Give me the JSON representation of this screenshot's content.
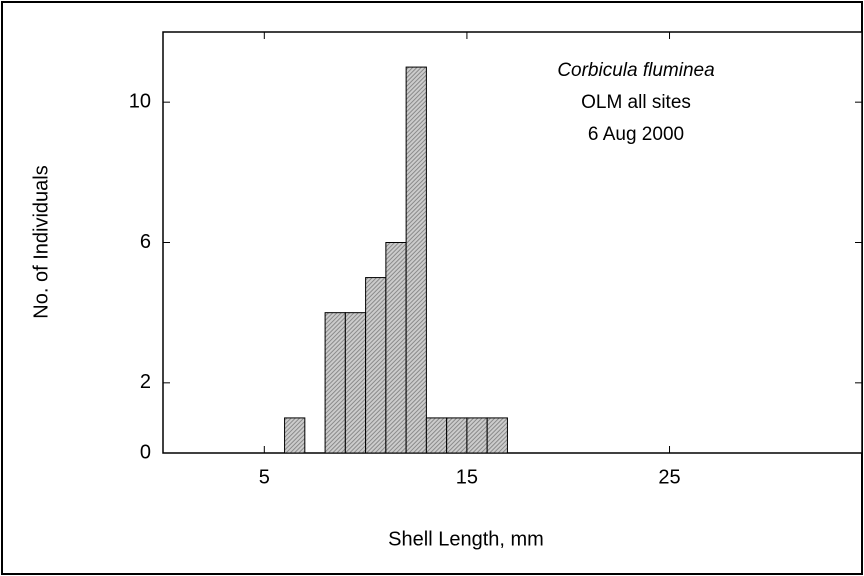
{
  "chart_data": {
    "type": "histogram",
    "xlabel": "Shell Length, mm",
    "ylabel": "No. of Individuals",
    "annotations": [
      "Corbicula fluminea",
      "OLM all sites",
      "6 Aug 2000"
    ],
    "bins": [
      0,
      1,
      2,
      3,
      4,
      5,
      6,
      7,
      8,
      9,
      10,
      11,
      12,
      13,
      14,
      15,
      16,
      17
    ],
    "counts": [
      0,
      0,
      0,
      0,
      0,
      0,
      1,
      0,
      4,
      4,
      5,
      6,
      11,
      1,
      1,
      1,
      1
    ],
    "color": "#8a8a8a",
    "xlim": [
      0,
      34.5
    ],
    "xticks": [
      5,
      15,
      25
    ],
    "ylim": [
      0,
      12
    ],
    "yticks": [
      0,
      2,
      6,
      10
    ],
    "grid": false
  }
}
